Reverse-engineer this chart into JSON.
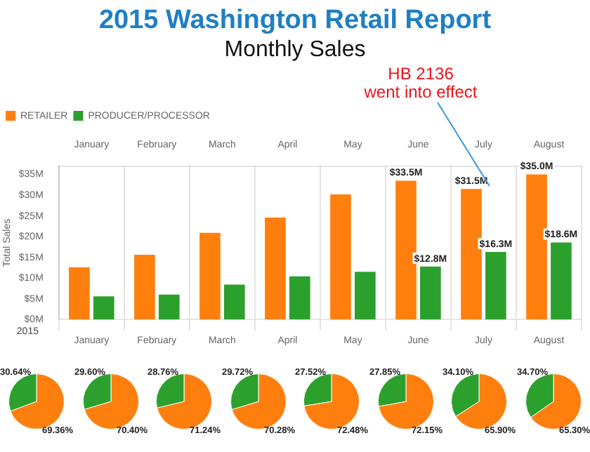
{
  "chart_data": [
    {
      "type": "bar",
      "title": "2015 Washington Retail Report",
      "subtitle": "Monthly Sales",
      "ylabel": "Total Sales",
      "categories": [
        "January",
        "February",
        "March",
        "April",
        "May",
        "June",
        "July",
        "August"
      ],
      "series": [
        {
          "name": "RETAILER",
          "color": "#ff7f0e",
          "values": [
            12.6,
            15.6,
            20.9,
            24.6,
            30.2,
            33.5,
            31.5,
            35.0
          ],
          "value_labels": [
            null,
            null,
            null,
            null,
            null,
            "$33.5M",
            "$31.5M",
            "$35.0M"
          ]
        },
        {
          "name": "PRODUCER/PROCESSOR",
          "color": "#2ca02c",
          "values": [
            5.6,
            6.0,
            8.4,
            10.4,
            11.5,
            12.8,
            16.3,
            18.6
          ],
          "value_labels": [
            null,
            null,
            null,
            null,
            null,
            "$12.8M",
            "$16.3M",
            "$18.6M"
          ]
        }
      ],
      "ylim": [
        0,
        37
      ],
      "yticks": [
        {
          "value": 0,
          "label": "$0M"
        },
        {
          "value": 5,
          "label": "$5M"
        },
        {
          "value": 10,
          "label": "$10M"
        },
        {
          "value": 15,
          "label": "$15M"
        },
        {
          "value": 20,
          "label": "$20M"
        },
        {
          "value": 25,
          "label": "$25M"
        },
        {
          "value": 30,
          "label": "$30M"
        },
        {
          "value": 35,
          "label": "$35M"
        }
      ],
      "grid": "x",
      "legend": "top left",
      "annotations": [
        "2015",
        {
          "text": "HB 2136 went into effect",
          "x": "July",
          "y": 31.5
        }
      ]
    },
    {
      "type": "pie",
      "categories": [
        null,
        null
      ],
      "values": [
        69.36,
        30.64
      ],
      "colors": [
        "#ff7f0e",
        "#2ca02c"
      ],
      "value_labels": [
        "69.36%",
        "30.64%"
      ]
    },
    {
      "type": "pie",
      "categories": [
        null,
        null
      ],
      "values": [
        70.4,
        29.6
      ],
      "colors": [
        "#ff7f0e",
        "#2ca02c"
      ],
      "value_labels": [
        "70.40%",
        "29.60%"
      ]
    },
    {
      "type": "pie",
      "categories": [
        null,
        null
      ],
      "values": [
        71.24,
        28.76
      ],
      "colors": [
        "#ff7f0e",
        "#2ca02c"
      ],
      "value_labels": [
        "71.24%",
        "28.76%"
      ]
    },
    {
      "type": "pie",
      "categories": [
        null,
        null
      ],
      "values": [
        70.28,
        29.72
      ],
      "colors": [
        "#ff7f0e",
        "#2ca02c"
      ],
      "value_labels": [
        "70.28%",
        "29.72%"
      ]
    },
    {
      "type": "pie",
      "categories": [
        null,
        null
      ],
      "values": [
        72.48,
        27.52
      ],
      "colors": [
        "#ff7f0e",
        "#2ca02c"
      ],
      "value_labels": [
        "72.48%",
        "27.52%"
      ]
    },
    {
      "type": "pie",
      "categories": [
        null,
        null
      ],
      "values": [
        72.15,
        27.85
      ],
      "colors": [
        "#ff7f0e",
        "#2ca02c"
      ],
      "value_labels": [
        "72.15%",
        "27.85%"
      ]
    },
    {
      "type": "pie",
      "categories": [
        null,
        null
      ],
      "values": [
        65.9,
        34.1
      ],
      "colors": [
        "#ff7f0e",
        "#2ca02c"
      ],
      "value_labels": [
        "65.90%",
        "34.10%"
      ]
    },
    {
      "type": "pie",
      "categories": [
        null,
        null
      ],
      "values": [
        65.3,
        34.7
      ],
      "colors": [
        "#ff7f0e",
        "#2ca02c"
      ],
      "value_labels": [
        "65.30%",
        "34.70%"
      ]
    }
  ]
}
